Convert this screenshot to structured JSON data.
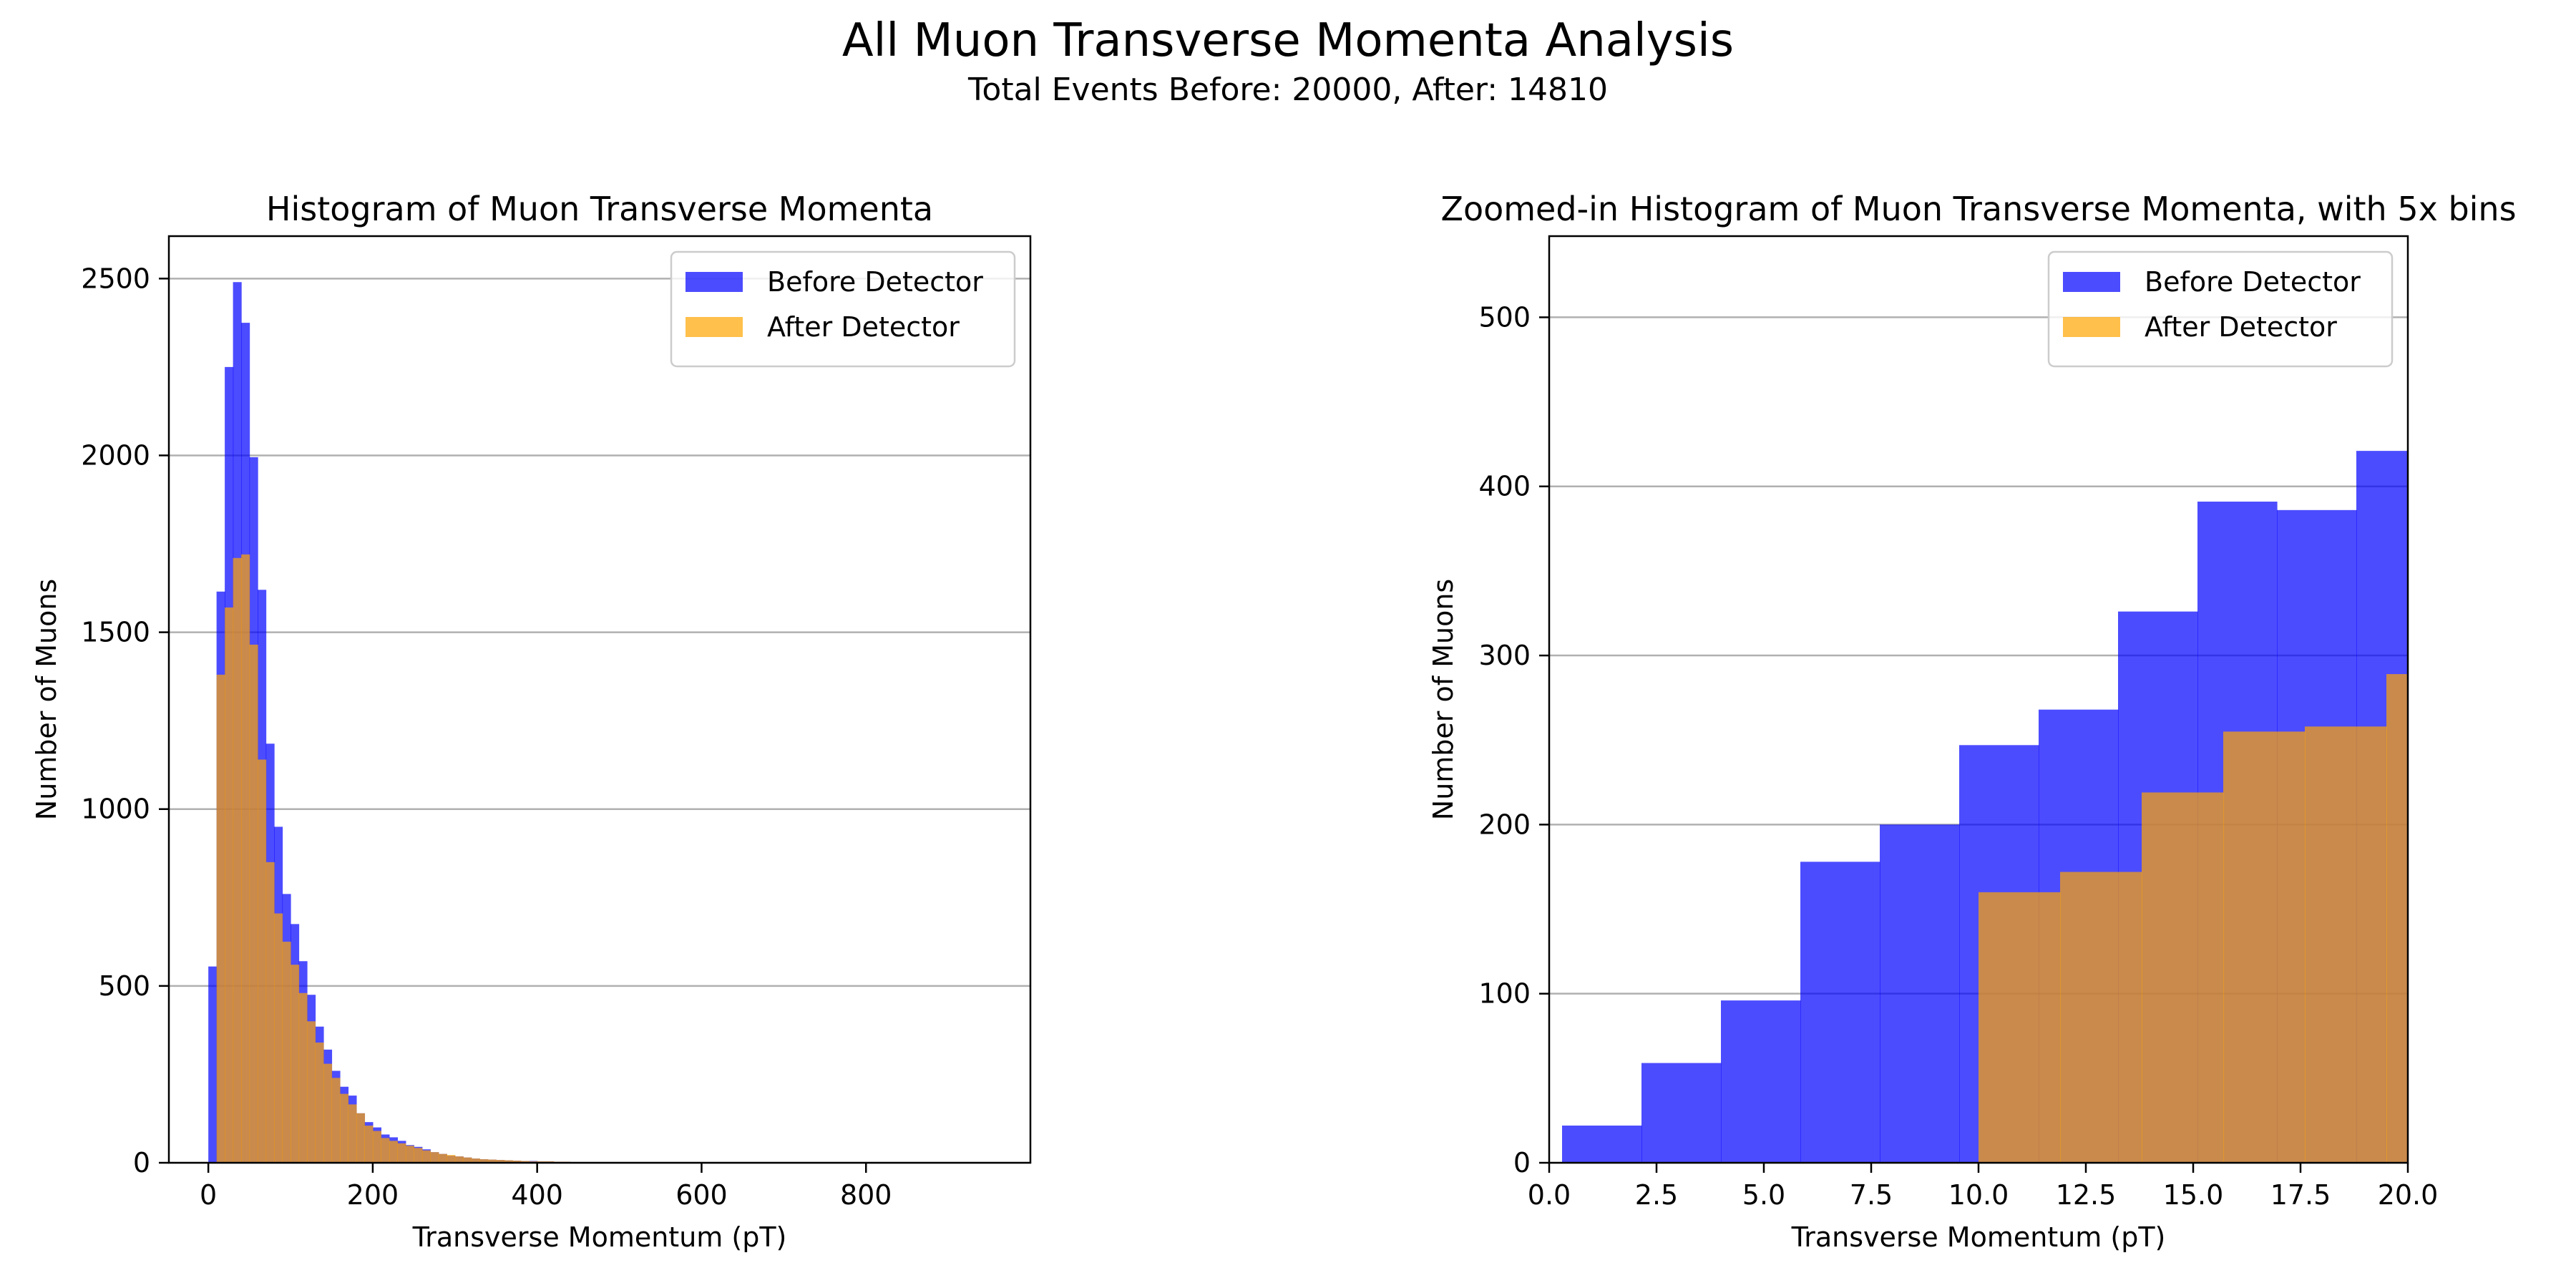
{
  "figure": {
    "suptitle": "All Muon Transverse Momenta Analysis",
    "subtitle": "Total Events Before: 20000, After: 14810"
  },
  "colors": {
    "before": "#0000ff",
    "after": "#ffa500",
    "grid": "#b0b0b0",
    "axes": "#000000"
  },
  "chart_data": [
    {
      "type": "bar",
      "subtype": "histogram-overlay",
      "title": "Histogram of Muon Transverse Momenta",
      "xlabel": "Transverse Momentum (pT)",
      "ylabel": "Number of Muons",
      "xlim": [
        -48,
        1000
      ],
      "ylim": [
        0,
        2620
      ],
      "xticks": [
        0,
        200,
        400,
        600,
        800
      ],
      "yticks": [
        0,
        500,
        1000,
        1500,
        2000,
        2500
      ],
      "grid": "y",
      "legend": "top-right",
      "series": [
        {
          "name": "Before Detector",
          "bin_edges": [
            0,
            10,
            20,
            30,
            40,
            50,
            60,
            70,
            80,
            90,
            100,
            110,
            120,
            130,
            140,
            150,
            160,
            170,
            180,
            190,
            200,
            210,
            220,
            230,
            240,
            250,
            260,
            270,
            280,
            290,
            300,
            310,
            320,
            330,
            340,
            350,
            360,
            370,
            380,
            390,
            400,
            420,
            440,
            460,
            480,
            500
          ],
          "values": [
            555,
            1615,
            2250,
            2490,
            2375,
            1995,
            1620,
            1185,
            950,
            760,
            675,
            570,
            475,
            385,
            320,
            260,
            215,
            190,
            140,
            115,
            100,
            80,
            72,
            62,
            50,
            45,
            38,
            30,
            25,
            20,
            18,
            15,
            12,
            10,
            9,
            8,
            7,
            6,
            5,
            5,
            4,
            3,
            2,
            2,
            1
          ]
        },
        {
          "name": "After Detector",
          "bin_edges": [
            10,
            20,
            30,
            40,
            50,
            60,
            70,
            80,
            90,
            100,
            110,
            120,
            130,
            140,
            150,
            160,
            170,
            180,
            190,
            200,
            210,
            220,
            230,
            240,
            250,
            260,
            270,
            280,
            290,
            300,
            310,
            320,
            330,
            340,
            350,
            360,
            370,
            380,
            390,
            400,
            420,
            440,
            460,
            480,
            500
          ],
          "values": [
            1380,
            1570,
            1710,
            1720,
            1465,
            1140,
            850,
            705,
            625,
            560,
            480,
            400,
            340,
            280,
            240,
            195,
            165,
            140,
            105,
            90,
            70,
            62,
            55,
            48,
            42,
            35,
            30,
            25,
            22,
            18,
            15,
            12,
            10,
            9,
            8,
            7,
            6,
            5,
            4,
            4,
            3,
            2,
            2,
            1
          ]
        }
      ]
    },
    {
      "type": "bar",
      "subtype": "histogram-overlay",
      "title": "Zoomed-in Histogram of Muon Transverse Momenta, with 5x bins",
      "xlabel": "Transverse Momentum (pT)",
      "ylabel": "Number of Muons",
      "xlim": [
        0,
        20
      ],
      "ylim": [
        0,
        548
      ],
      "xticks": [
        0.0,
        2.5,
        5.0,
        7.5,
        10.0,
        12.5,
        15.0,
        17.5,
        20.0
      ],
      "xtick_labels": [
        "0.0",
        "2.5",
        "5.0",
        "7.5",
        "10.0",
        "12.5",
        "15.0",
        "17.5",
        "20.0"
      ],
      "yticks": [
        0,
        100,
        200,
        300,
        400,
        500
      ],
      "grid": "y",
      "legend": "top-right",
      "series": [
        {
          "name": "Before Detector",
          "bin_edges": [
            0.3,
            2.15,
            4.0,
            5.85,
            7.7,
            9.55,
            11.4,
            13.25,
            15.1,
            16.95,
            18.8,
            20.65
          ],
          "values": [
            22,
            59,
            96,
            178,
            200,
            247,
            268,
            326,
            391,
            386,
            421
          ]
        },
        {
          "name": "After Detector",
          "bin_edges": [
            10.0,
            11.9,
            13.8,
            15.7,
            17.6,
            19.5,
            21.4
          ],
          "values": [
            160,
            172,
            219,
            255,
            258,
            289
          ]
        }
      ]
    }
  ]
}
